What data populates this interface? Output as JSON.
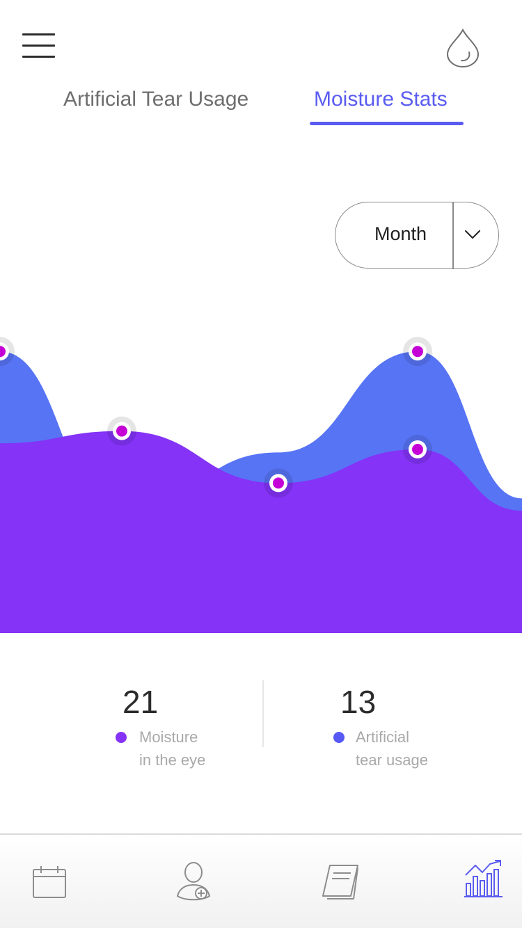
{
  "header": {
    "menu_icon": "hamburger-icon",
    "action_icon": "water-drop-icon"
  },
  "tabs": [
    {
      "label": "Artificial Tear Usage",
      "active": false
    },
    {
      "label": "Moisture Stats",
      "active": true
    }
  ],
  "period_selector": {
    "selected": "Month",
    "icon": "chevron-down-icon"
  },
  "colors": {
    "accent": "#5a5cf0",
    "moisture": "#8433f7",
    "tear_usage": "#5774f5",
    "point_fill": "#c400d6"
  },
  "chart_data": {
    "type": "area",
    "series": [
      {
        "key": "tear_usage",
        "points": [
          [
            0,
            0.92
          ],
          [
            1.75,
            0.4
          ],
          [
            4.0,
            0.59
          ],
          [
            6.0,
            0.92
          ],
          [
            7.5,
            0.44
          ]
        ]
      },
      {
        "key": "moisture",
        "points": [
          [
            0,
            0.62
          ],
          [
            1.75,
            0.66
          ],
          [
            4.0,
            0.49
          ],
          [
            6.0,
            0.6
          ],
          [
            7.5,
            0.4
          ]
        ]
      }
    ],
    "markers": [
      [
        0,
        0.92
      ],
      [
        1.75,
        0.66
      ],
      [
        4.0,
        0.49
      ],
      [
        6.0,
        0.92
      ],
      [
        6.0,
        0.6
      ]
    ],
    "x_range": [
      0,
      7.5
    ],
    "y_range": [
      0,
      1
    ],
    "grid": false,
    "legend": "none"
  },
  "stats": [
    {
      "value": "21",
      "line1": "Moisture",
      "line2": "in the eye",
      "color": "#8433f7"
    },
    {
      "value": "13",
      "line1": "Artificial",
      "line2": "tear usage",
      "color": "#5858f5"
    }
  ],
  "bottom_nav": [
    {
      "icon": "calendar-icon",
      "active": false
    },
    {
      "icon": "eye-doctor-icon",
      "active": false
    },
    {
      "icon": "journal-icon",
      "active": false
    },
    {
      "icon": "statistics-icon",
      "active": true
    }
  ]
}
